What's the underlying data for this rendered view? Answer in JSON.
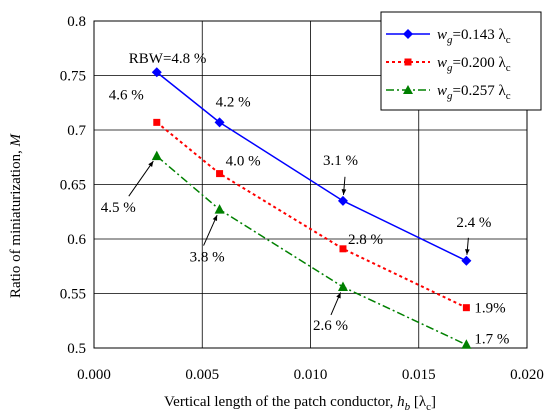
{
  "chart_data": {
    "type": "line",
    "xlabel": "Vertical length of the patch conductor, h_b [λc]",
    "ylabel": "Ratio of miniaturization,  M",
    "xlim": [
      0.0,
      0.02
    ],
    "ylim": [
      0.5,
      0.8
    ],
    "x_ticks": [
      "0.000",
      "0.005",
      "0.010",
      "0.015",
      "0.020"
    ],
    "y_ticks": [
      "0.5",
      "0.55",
      "0.6",
      "0.65",
      "0.7",
      "0.75",
      "0.8"
    ],
    "grid": true,
    "legend_position": "top-right",
    "series": [
      {
        "name": "wg=0.143 λc",
        "color": "#0000ff",
        "marker": "diamond",
        "line_style": "solid",
        "x": [
          0.0029,
          0.0058,
          0.0115,
          0.0172
        ],
        "y": [
          0.753,
          0.707,
          0.635,
          0.58
        ],
        "labels": [
          "RBW=4.8 %",
          "4.2 %",
          "3.1 %",
          "2.4 %"
        ]
      },
      {
        "name": "wg=0.200 λc",
        "color": "#ff0000",
        "marker": "square",
        "line_style": "dotted",
        "x": [
          0.0029,
          0.0058,
          0.0115,
          0.0172
        ],
        "y": [
          0.707,
          0.66,
          0.591,
          0.537
        ],
        "labels": [
          "4.6 %",
          "4.0 %",
          "2.8 %",
          "1.9%"
        ]
      },
      {
        "name": "wg=0.257 λc",
        "color": "#008000",
        "marker": "triangle",
        "line_style": "dashdot",
        "x": [
          0.0029,
          0.0058,
          0.0115,
          0.0172
        ],
        "y": [
          0.676,
          0.627,
          0.556,
          0.503
        ],
        "labels": [
          "4.5 %",
          "3.8 %",
          "2.6 %",
          "1.7 %"
        ]
      }
    ]
  },
  "axis_text": {
    "y_prefix": "Ratio of miniaturization, ",
    "y_var": "M",
    "x_prefix": "Vertical length of the patch conductor, ",
    "x_var": "h",
    "x_sub": "b",
    "x_unit_open": " [λ",
    "x_unit_sub": "c",
    "x_unit_close": "]"
  },
  "legend": [
    {
      "var": "w",
      "sub": "g",
      "value": "=0.143 λ",
      "unit_sub": "c"
    },
    {
      "var": "w",
      "sub": "g",
      "value": "=0.200 λ",
      "unit_sub": "c"
    },
    {
      "var": "w",
      "sub": "g",
      "value": "=0.257 λ",
      "unit_sub": "c"
    }
  ]
}
